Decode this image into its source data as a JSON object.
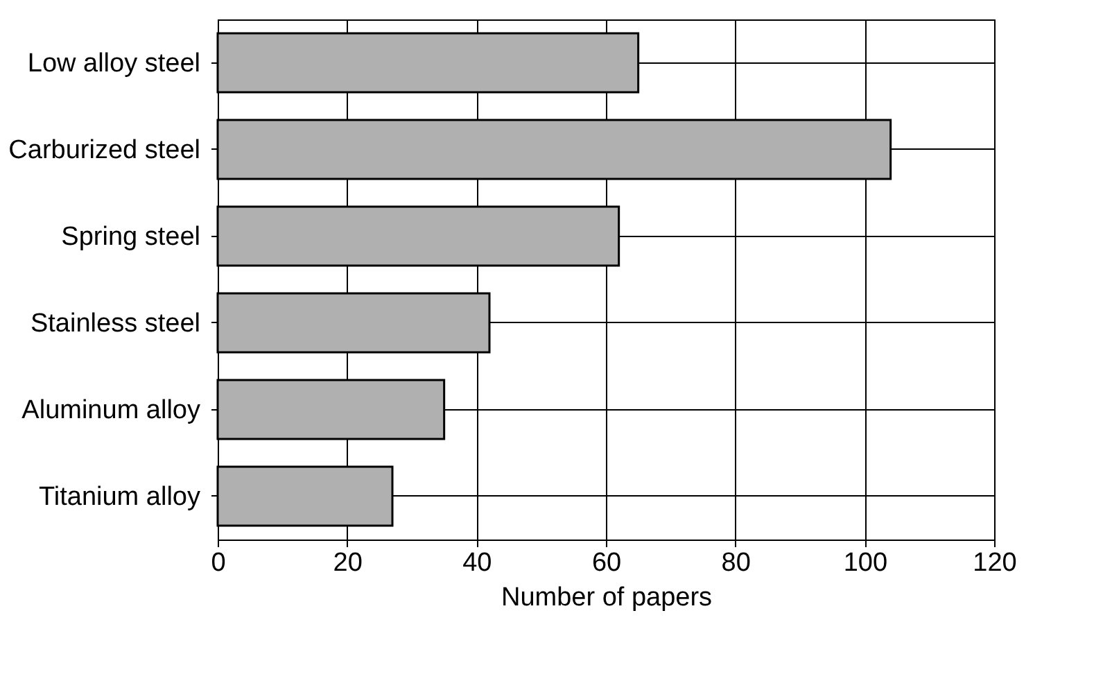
{
  "chart_data": {
    "type": "bar",
    "orientation": "horizontal",
    "xlabel": "Number of papers",
    "categories": [
      "Low alloy steel",
      "Carburized steel",
      "Spring steel",
      "Stainless steel",
      "Aluminum alloy",
      "Titanium alloy"
    ],
    "values": [
      65,
      104,
      62,
      42,
      35,
      27
    ],
    "color": "#b0b0b0",
    "xlim": [
      0,
      120
    ],
    "xticks": [
      0,
      20,
      40,
      60,
      80,
      100,
      120
    ],
    "grid": true
  }
}
